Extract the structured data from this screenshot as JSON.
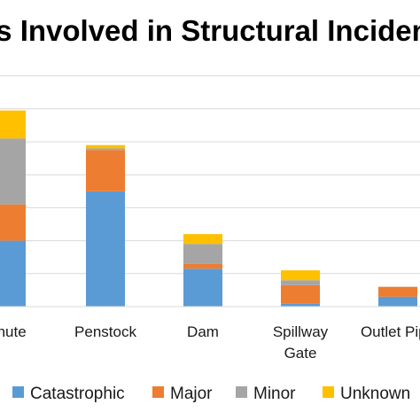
{
  "chart_data": {
    "type": "bar",
    "stacked": true,
    "title": "Components Involved in Structural Incidents",
    "categories": [
      [
        "Chute"
      ],
      [
        "Penstock"
      ],
      [
        "Dam"
      ],
      [
        "Spillway",
        "Gate"
      ],
      [
        "Outlet Pipe"
      ]
    ],
    "series": [
      {
        "name": "Catastrophic",
        "color": "#5B9BD5",
        "values": [
          20,
          35,
          11.5,
          1,
          3
        ]
      },
      {
        "name": "Major",
        "color": "#ED7D31",
        "values": [
          11,
          12.5,
          1.5,
          5.5,
          3
        ]
      },
      {
        "name": "Minor",
        "color": "#A5A5A5",
        "values": [
          20,
          0.5,
          6,
          1.5,
          0
        ]
      },
      {
        "name": "Unknown",
        "color": "#FFC000",
        "values": [
          8.5,
          1,
          3,
          3,
          0
        ]
      }
    ],
    "ylim": [
      0,
      70
    ],
    "y_grid_step": 10,
    "grid": true,
    "legend_position": "bottom"
  }
}
